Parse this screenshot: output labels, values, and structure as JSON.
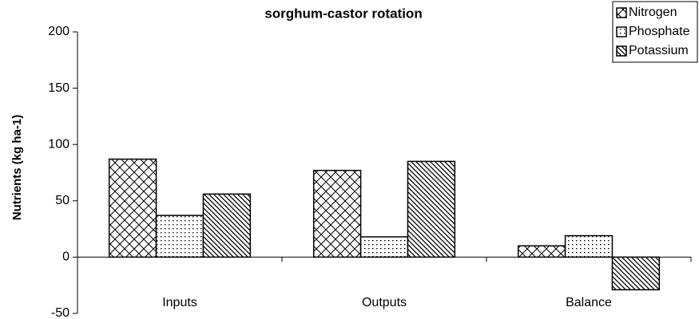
{
  "chart_data": {
    "type": "bar",
    "title": "sorghum-castor rotation",
    "y_label": "Nutrients (kg ha-1)",
    "categories": [
      "Inputs",
      "Outputs",
      "Balance"
    ],
    "series": [
      {
        "name": "Nitrogen",
        "color": "#000000",
        "pattern": "crosshatch",
        "values": [
          87,
          77,
          10
        ]
      },
      {
        "name": "Phosphate",
        "color": "#000000",
        "pattern": "dots",
        "values": [
          37,
          18,
          19
        ]
      },
      {
        "name": "Potassium",
        "color": "#000000",
        "pattern": "diagonal",
        "values": [
          56,
          85,
          -29
        ]
      }
    ],
    "ylim": [
      -50,
      200
    ],
    "yticks": [
      -50,
      0,
      50,
      100,
      150,
      200
    ],
    "grid": false,
    "legend": "top-right"
  }
}
